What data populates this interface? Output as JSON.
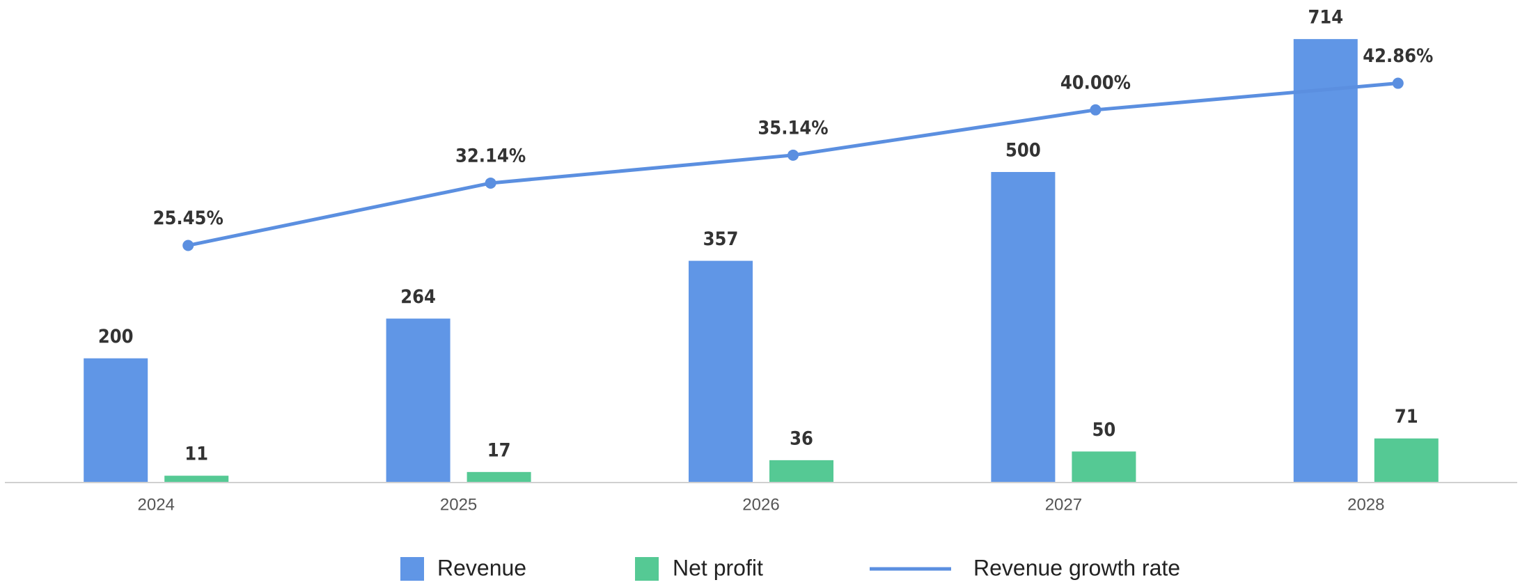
{
  "chart_data": {
    "type": "bar",
    "categories": [
      "2024",
      "2025",
      "2026",
      "2027",
      "2028"
    ],
    "series": [
      {
        "name": "Revenue",
        "type": "bar",
        "color": "#6096e6",
        "values": [
          200,
          264,
          357,
          500,
          714
        ]
      },
      {
        "name": "Net profit",
        "type": "bar",
        "color": "#55c994",
        "values": [
          11,
          17,
          36,
          50,
          71
        ]
      },
      {
        "name": "Revenue growth rate",
        "type": "line",
        "axis": "y2",
        "color": "#5b8fe0",
        "values": [
          25.45,
          32.14,
          35.14,
          40.0,
          42.86
        ],
        "value_labels": [
          "25.45%",
          "32.14%",
          "35.14%",
          "40.00%",
          "42.86%"
        ]
      }
    ],
    "ylim": [
      0,
      750
    ],
    "y2lim": [
      0,
      50
    ],
    "legend": "bottom"
  }
}
